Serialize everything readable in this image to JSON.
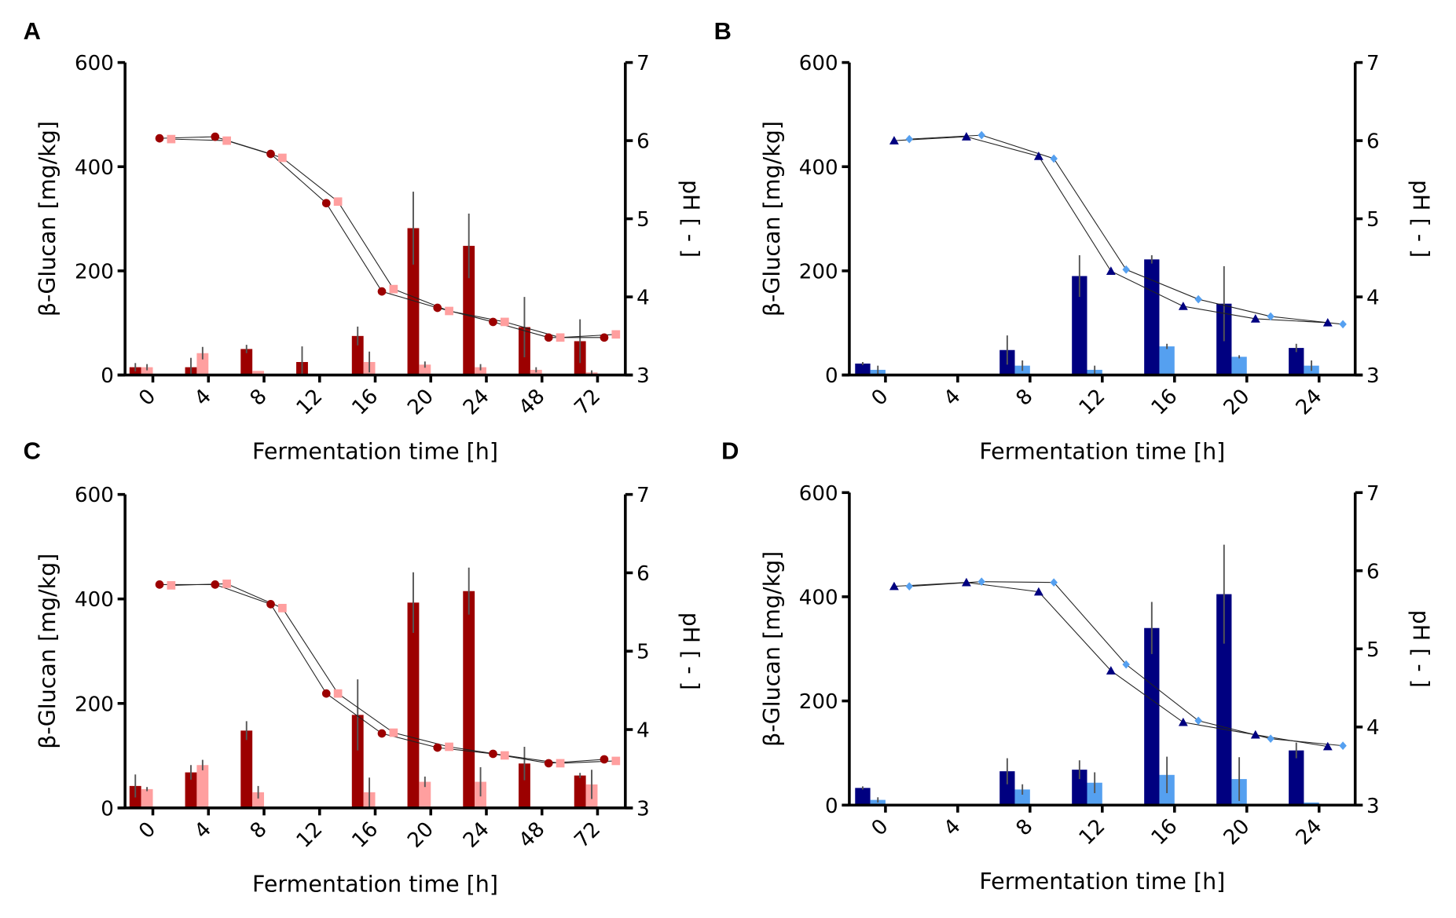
{
  "chart_data": [
    {
      "panel": "A",
      "type": "bar",
      "title": "",
      "xlabel": "Fermentation time [h]",
      "ylabel": "β-Glucan [mg/kg]",
      "y2label": "pH [ - ]",
      "ylim": [
        0,
        600
      ],
      "yticks": [
        "0",
        "200",
        "400",
        "600"
      ],
      "y2lim": [
        3,
        7
      ],
      "y2ticks": [
        "3",
        "4",
        "5",
        "6",
        "7"
      ],
      "categories": [
        "0",
        "4",
        "8",
        "12",
        "16",
        "20",
        "24",
        "48",
        "72"
      ],
      "colors": {
        "dark": "#9c0000",
        "light": "#ff9f9f"
      },
      "markers": {
        "dark": "circle",
        "light": "square"
      },
      "series": [
        {
          "name": "β-Glucan dark",
          "axis": "left",
          "type": "bar",
          "values": [
            15,
            15,
            50,
            25,
            75,
            282,
            248,
            92,
            65
          ],
          "errors": [
            8,
            18,
            8,
            30,
            18,
            70,
            62,
            58,
            42
          ]
        },
        {
          "name": "β-Glucan light",
          "axis": "left",
          "type": "bar",
          "values": [
            15,
            42,
            8,
            0,
            25,
            20,
            15,
            10,
            5
          ],
          "errors": [
            6,
            12,
            0,
            0,
            20,
            6,
            6,
            5,
            4
          ]
        },
        {
          "name": "pH dark",
          "axis": "right",
          "type": "line",
          "values": [
            6.03,
            6.05,
            5.83,
            5.2,
            4.07,
            3.86,
            3.68,
            3.48,
            3.48
          ]
        },
        {
          "name": "pH light",
          "axis": "right",
          "type": "line",
          "values": [
            6.02,
            6.0,
            5.78,
            5.22,
            4.1,
            3.82,
            3.68,
            3.48,
            3.52
          ]
        }
      ]
    },
    {
      "panel": "B",
      "type": "bar",
      "title": "",
      "xlabel": "Fermentation time [h]",
      "ylabel": "β-Glucan [mg/kg]",
      "y2label": "pH [ - ]",
      "ylim": [
        0,
        600
      ],
      "yticks": [
        "0",
        "200",
        "400",
        "600"
      ],
      "y2lim": [
        3,
        7
      ],
      "y2ticks": [
        "3",
        "4",
        "5",
        "6",
        "7"
      ],
      "categories": [
        "0",
        "4",
        "8",
        "12",
        "16",
        "20",
        "24"
      ],
      "colors": {
        "dark": "#000080",
        "light": "#55a0f0"
      },
      "markers": {
        "dark": "triangle",
        "light": "diamond"
      },
      "series": [
        {
          "name": "β-Glucan dark",
          "axis": "left",
          "type": "bar",
          "values": [
            22,
            0,
            48,
            190,
            222,
            137,
            52
          ],
          "errors": [
            3,
            0,
            28,
            40,
            8,
            72,
            8
          ]
        },
        {
          "name": "β-Glucan light",
          "axis": "left",
          "type": "bar",
          "values": [
            10,
            0,
            18,
            10,
            55,
            35,
            18
          ],
          "errors": [
            8,
            0,
            10,
            8,
            5,
            3,
            10
          ]
        },
        {
          "name": "pH dark",
          "axis": "right",
          "type": "line",
          "values": [
            6.0,
            6.05,
            5.8,
            4.33,
            3.88,
            3.72,
            3.67
          ]
        },
        {
          "name": "pH light",
          "axis": "right",
          "type": "line",
          "values": [
            6.02,
            6.07,
            5.77,
            4.35,
            3.97,
            3.75,
            3.65
          ]
        }
      ]
    },
    {
      "panel": "C",
      "type": "bar",
      "title": "",
      "xlabel": "Fermentation time [h]",
      "ylabel": "β-Glucan [mg/kg]",
      "y2label": "pH [ - ]",
      "ylim": [
        0,
        600
      ],
      "yticks": [
        "0",
        "200",
        "400",
        "600"
      ],
      "y2lim": [
        3,
        7
      ],
      "y2ticks": [
        "3",
        "4",
        "5",
        "6",
        "7"
      ],
      "categories": [
        "0",
        "4",
        "8",
        "12",
        "16",
        "20",
        "24",
        "48",
        "72"
      ],
      "colors": {
        "dark": "#9c0000",
        "light": "#ff9f9f"
      },
      "markers": {
        "dark": "circle",
        "light": "square"
      },
      "series": [
        {
          "name": "β-Glucan dark",
          "axis": "left",
          "type": "bar",
          "values": [
            42,
            68,
            148,
            0,
            178,
            393,
            415,
            85,
            62
          ],
          "errors": [
            22,
            14,
            18,
            0,
            68,
            58,
            45,
            32,
            5
          ]
        },
        {
          "name": "β-Glucan light",
          "axis": "left",
          "type": "bar",
          "values": [
            36,
            82,
            30,
            0,
            30,
            50,
            50,
            0,
            45
          ],
          "errors": [
            4,
            10,
            12,
            0,
            28,
            10,
            28,
            0,
            28
          ]
        },
        {
          "name": "pH dark",
          "axis": "right",
          "type": "line",
          "values": [
            5.85,
            5.85,
            5.6,
            4.46,
            3.95,
            3.77,
            3.69,
            3.57,
            3.62
          ]
        },
        {
          "name": "pH light",
          "axis": "right",
          "type": "line",
          "values": [
            5.84,
            5.86,
            5.55,
            4.46,
            3.96,
            3.78,
            3.67,
            3.57,
            3.6
          ]
        }
      ]
    },
    {
      "panel": "D",
      "type": "bar",
      "title": "",
      "xlabel": "Fermentation time [h]",
      "ylabel": "β-Glucan [mg/kg]",
      "y2label": "pH [ - ]",
      "ylim": [
        0,
        600
      ],
      "yticks": [
        "0",
        "200",
        "400",
        "600"
      ],
      "y2lim": [
        3,
        7
      ],
      "y2ticks": [
        "3",
        "4",
        "5",
        "6",
        "7"
      ],
      "categories": [
        "0",
        "4",
        "8",
        "12",
        "16",
        "20",
        "24"
      ],
      "colors": {
        "dark": "#000080",
        "light": "#55a0f0"
      },
      "markers": {
        "dark": "triangle",
        "light": "diamond"
      },
      "series": [
        {
          "name": "β-Glucan dark",
          "axis": "left",
          "type": "bar",
          "values": [
            33,
            0,
            65,
            68,
            340,
            405,
            105
          ],
          "errors": [
            3,
            0,
            25,
            18,
            50,
            95,
            15
          ]
        },
        {
          "name": "β-Glucan light",
          "axis": "left",
          "type": "bar",
          "values": [
            10,
            0,
            30,
            43,
            58,
            50,
            5
          ],
          "errors": [
            5,
            0,
            10,
            20,
            35,
            42,
            0
          ]
        },
        {
          "name": "pH dark",
          "axis": "right",
          "type": "line",
          "values": [
            5.8,
            5.85,
            5.73,
            4.72,
            4.06,
            3.9,
            3.75
          ]
        },
        {
          "name": "pH light",
          "axis": "right",
          "type": "line",
          "values": [
            5.8,
            5.86,
            5.85,
            4.8,
            4.08,
            3.85,
            3.76
          ]
        }
      ]
    }
  ]
}
